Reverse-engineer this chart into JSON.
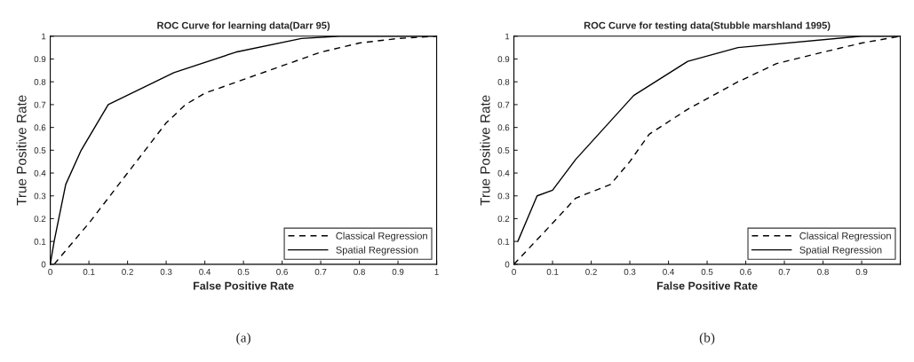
{
  "chart_data": [
    {
      "type": "line",
      "title": "ROC Curve for learning data(Darr 95)",
      "xlabel": "False Positive Rate",
      "ylabel": "True Positive Rate",
      "xlim": [
        0,
        1
      ],
      "ylim": [
        0,
        1
      ],
      "xticks": [
        0,
        0.1,
        0.2,
        0.3,
        0.4,
        0.5,
        0.6,
        0.7,
        0.8,
        0.9,
        1
      ],
      "yticks": [
        0,
        0.1,
        0.2,
        0.3,
        0.4,
        0.5,
        0.6,
        0.7,
        0.8,
        0.9,
        1
      ],
      "legend": "bottom right",
      "grid": false,
      "annotations": [
        "(a)"
      ],
      "series": [
        {
          "name": "Classical Regression",
          "color": "#000000",
          "line_style": "dashed",
          "x": [
            0.01,
            0.1,
            0.2,
            0.3,
            0.35,
            0.4,
            0.5,
            0.6,
            0.65,
            0.7,
            0.8,
            0.9,
            1
          ],
          "values": [
            0,
            0.18,
            0.4,
            0.62,
            0.7,
            0.75,
            0.81,
            0.87,
            0.9,
            0.93,
            0.97,
            0.99,
            1
          ]
        },
        {
          "name": "Spatial Regression",
          "color": "#000000",
          "line_style": "solid",
          "x": [
            0,
            0.01,
            0.04,
            0.08,
            0.15,
            0.32,
            0.48,
            0.65,
            0.75,
            1
          ],
          "values": [
            0,
            0.1,
            0.35,
            0.5,
            0.7,
            0.84,
            0.93,
            0.99,
            1,
            1
          ]
        }
      ]
    },
    {
      "type": "line",
      "title": "ROC Curve for testing data(Stubble marshland 1995)",
      "xlabel": "False Positive Rate",
      "ylabel": "True Positive Rate",
      "xlim": [
        0,
        1
      ],
      "ylim": [
        0,
        1
      ],
      "xticks": [
        0,
        0.1,
        0.2,
        0.3,
        0.4,
        0.5,
        0.6,
        0.7,
        0.8,
        0.9,
        {
          "value": 1,
          "label": null
        }
      ],
      "yticks": [
        0,
        0.1,
        0.2,
        0.3,
        0.4,
        0.5,
        0.6,
        0.7,
        0.8,
        0.9,
        1
      ],
      "legend": "bottom right",
      "grid": false,
      "annotations": [
        "(b)"
      ],
      "series": [
        {
          "name": "Classical Regression",
          "color": "#000000",
          "line_style": "dashed",
          "x": [
            0,
            0.1,
            0.16,
            0.25,
            0.3,
            0.35,
            0.45,
            0.58,
            0.68,
            0.8,
            0.9,
            1
          ],
          "values": [
            0,
            0.18,
            0.29,
            0.35,
            0.45,
            0.57,
            0.68,
            0.8,
            0.88,
            0.93,
            0.97,
            1
          ]
        },
        {
          "name": "Spatial Regression",
          "color": "#000000",
          "line_style": "solid",
          "x": [
            0.01,
            0.06,
            0.1,
            0.16,
            0.31,
            0.45,
            0.58,
            0.9,
            1
          ],
          "values": [
            0.1,
            0.3,
            0.325,
            0.46,
            0.74,
            0.89,
            0.95,
            1,
            1
          ]
        }
      ]
    }
  ]
}
